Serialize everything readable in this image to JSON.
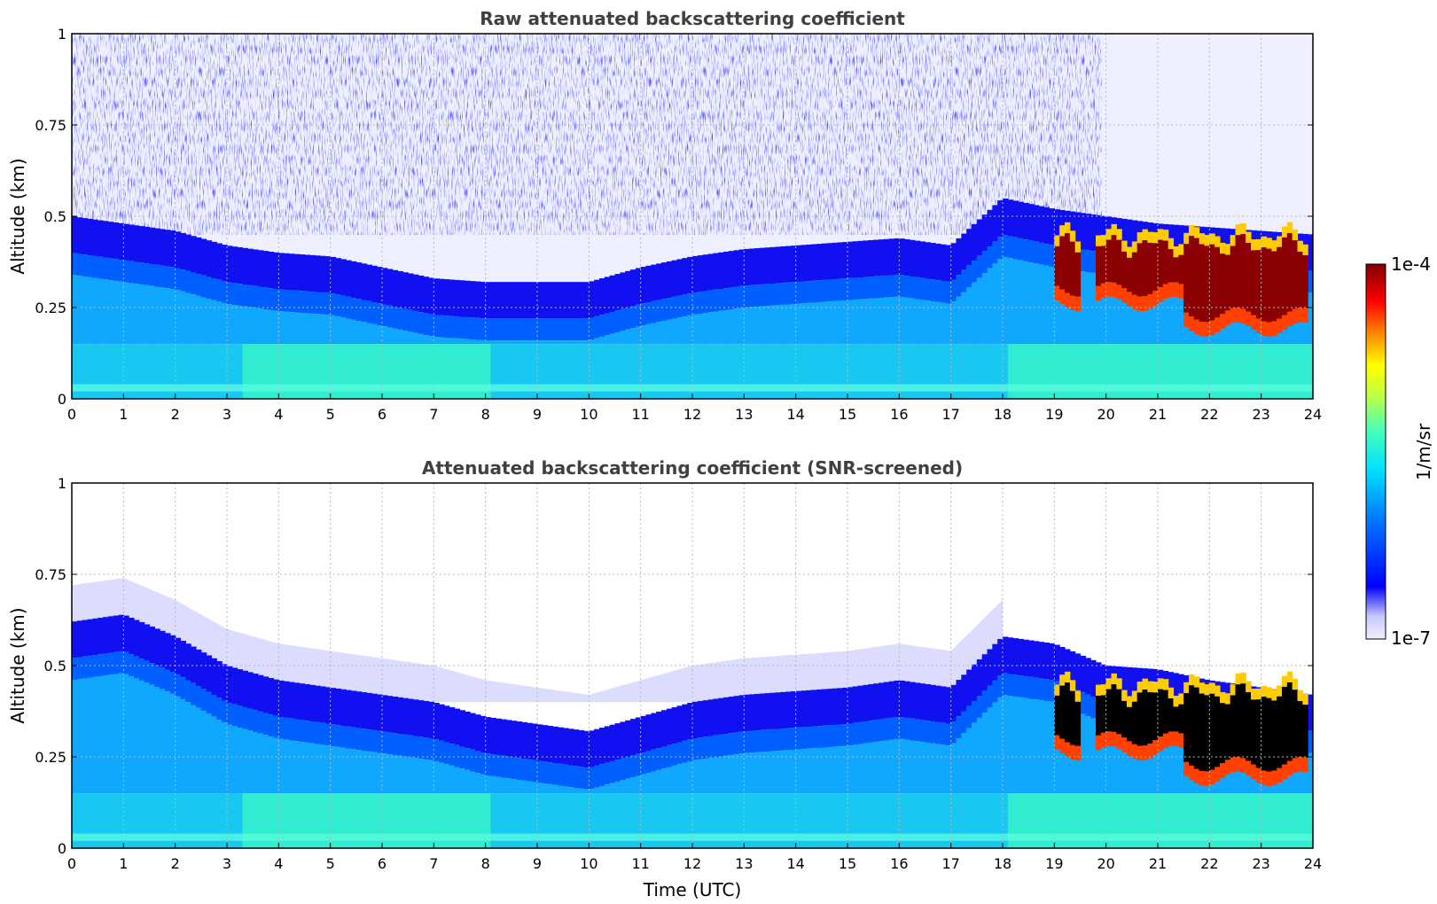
{
  "chart_data": [
    {
      "type": "heatmap",
      "title": "Raw attenuated backscattering coefficient",
      "xlabel": "",
      "ylabel": "Altitude (km)",
      "xlim": [
        0,
        24
      ],
      "ylim": [
        0,
        1
      ],
      "x_ticks": [
        "0",
        "1",
        "2",
        "3",
        "4",
        "5",
        "6",
        "7",
        "8",
        "9",
        "10",
        "11",
        "12",
        "13",
        "14",
        "15",
        "16",
        "17",
        "18",
        "19",
        "20",
        "21",
        "22",
        "23",
        "24"
      ],
      "y_ticks": [
        "0",
        "0.25",
        "0.5",
        "0.75",
        "1"
      ],
      "grid": true,
      "variant": "raw",
      "boundary_layer_top_km": [
        [
          0,
          0.5
        ],
        [
          1,
          0.48
        ],
        [
          2,
          0.46
        ],
        [
          3,
          0.42
        ],
        [
          4,
          0.4
        ],
        [
          5,
          0.39
        ],
        [
          6,
          0.36
        ],
        [
          7,
          0.33
        ],
        [
          8,
          0.32
        ],
        [
          9,
          0.32
        ],
        [
          10,
          0.32
        ],
        [
          11,
          0.36
        ],
        [
          12,
          0.39
        ],
        [
          13,
          0.41
        ],
        [
          14,
          0.42
        ],
        [
          15,
          0.43
        ],
        [
          16,
          0.44
        ],
        [
          17,
          0.42
        ],
        [
          18,
          0.55
        ],
        [
          19,
          0.52
        ],
        [
          20,
          0.5
        ],
        [
          21,
          0.48
        ],
        [
          22,
          0.47
        ],
        [
          23,
          0.46
        ],
        [
          24,
          0.45
        ]
      ],
      "cloud_layer": {
        "start_hour": 19.0,
        "end_hour": 23.9,
        "base_km": 0.25,
        "top_km": 0.45
      }
    },
    {
      "type": "heatmap",
      "title": "Attenuated backscattering coefficient (SNR-screened)",
      "xlabel": "Time (UTC)",
      "ylabel": "Altitude (km)",
      "xlim": [
        0,
        24
      ],
      "ylim": [
        0,
        1
      ],
      "x_ticks": [
        "0",
        "1",
        "2",
        "3",
        "4",
        "5",
        "6",
        "7",
        "8",
        "9",
        "10",
        "11",
        "12",
        "13",
        "14",
        "15",
        "16",
        "17",
        "18",
        "19",
        "20",
        "21",
        "22",
        "23",
        "24"
      ],
      "y_ticks": [
        "0",
        "0.25",
        "0.5",
        "0.75",
        "1"
      ],
      "grid": true,
      "variant": "screened",
      "boundary_layer_top_km": [
        [
          0,
          0.62
        ],
        [
          1,
          0.64
        ],
        [
          2,
          0.58
        ],
        [
          3,
          0.5
        ],
        [
          4,
          0.46
        ],
        [
          5,
          0.44
        ],
        [
          6,
          0.42
        ],
        [
          7,
          0.4
        ],
        [
          8,
          0.36
        ],
        [
          9,
          0.34
        ],
        [
          10,
          0.32
        ],
        [
          11,
          0.36
        ],
        [
          12,
          0.4
        ],
        [
          13,
          0.42
        ],
        [
          14,
          0.43
        ],
        [
          15,
          0.44
        ],
        [
          16,
          0.46
        ],
        [
          17,
          0.44
        ],
        [
          18,
          0.58
        ],
        [
          19,
          0.56
        ],
        [
          20,
          0.5
        ],
        [
          21,
          0.49
        ],
        [
          22,
          0.46
        ],
        [
          23,
          0.44
        ],
        [
          24,
          0.42
        ]
      ],
      "cloud_layer": {
        "start_hour": 19.0,
        "end_hour": 23.9,
        "base_km": 0.25,
        "top_km": 0.45
      }
    }
  ],
  "colorbar": {
    "label": "1/m/sr",
    "max_label": "1e-4",
    "min_label": "1e-7",
    "scale": "log",
    "range": [
      1e-07,
      0.0001
    ],
    "colormap": "jet"
  }
}
